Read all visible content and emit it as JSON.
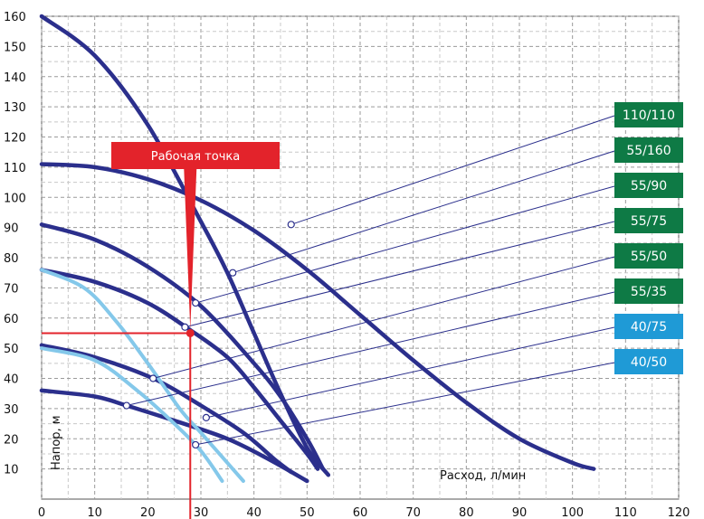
{
  "chart_data": {
    "type": "line",
    "xlabel": "Расход, л/мин",
    "ylabel": "Напор, м",
    "xlim": [
      0,
      120
    ],
    "ylim": [
      0,
      160
    ],
    "x_ticks": [
      "0",
      "10",
      "20",
      "30",
      "40",
      "50",
      "60",
      "70",
      "80",
      "90",
      "100",
      "110",
      "120"
    ],
    "y_ticks": [
      "10",
      "20",
      "30",
      "40",
      "50",
      "60",
      "70",
      "80",
      "90",
      "100",
      "110",
      "120",
      "130",
      "140",
      "150",
      "160"
    ],
    "grid": true,
    "colors": {
      "dark": "#2b2f8c",
      "light": "#84c8ea",
      "green": "#0e7a45",
      "blue": "#1f9ad6",
      "red": "#e3232b"
    },
    "series": [
      {
        "name": "110/110",
        "color": "dark",
        "label_color": "green",
        "points": [
          [
            0,
            111
          ],
          [
            10,
            110
          ],
          [
            20,
            106
          ],
          [
            30,
            99
          ],
          [
            40,
            89
          ],
          [
            50,
            76
          ],
          [
            60,
            61
          ],
          [
            70,
            46
          ],
          [
            80,
            32
          ],
          [
            90,
            20
          ],
          [
            100,
            12
          ],
          [
            104,
            10
          ]
        ],
        "marker": [
          47,
          91
        ]
      },
      {
        "name": "55/160",
        "color": "dark",
        "label_color": "green",
        "points": [
          [
            0,
            160
          ],
          [
            10,
            147
          ],
          [
            20,
            124
          ],
          [
            30,
            92
          ],
          [
            35,
            75
          ],
          [
            40,
            55
          ],
          [
            45,
            35
          ],
          [
            50,
            17
          ],
          [
            54,
            8
          ]
        ],
        "marker": [
          36,
          75
        ]
      },
      {
        "name": "55/90",
        "color": "dark",
        "label_color": "green",
        "points": [
          [
            0,
            91
          ],
          [
            10,
            86
          ],
          [
            20,
            77
          ],
          [
            30,
            64
          ],
          [
            40,
            45
          ],
          [
            45,
            34
          ],
          [
            50,
            20
          ],
          [
            53,
            10
          ]
        ],
        "marker": [
          29,
          65
        ]
      },
      {
        "name": "55/75",
        "color": "dark",
        "label_color": "green",
        "points": [
          [
            0,
            76
          ],
          [
            10,
            72
          ],
          [
            20,
            65
          ],
          [
            28,
            56
          ],
          [
            35,
            47
          ],
          [
            40,
            37
          ],
          [
            45,
            26
          ],
          [
            50,
            15
          ],
          [
            52,
            10
          ]
        ],
        "marker": [
          27,
          57
        ]
      },
      {
        "name": "55/50",
        "color": "dark",
        "label_color": "green",
        "points": [
          [
            0,
            51
          ],
          [
            10,
            47
          ],
          [
            21,
            40
          ],
          [
            30,
            31
          ],
          [
            38,
            22
          ],
          [
            44,
            13
          ],
          [
            47,
            9
          ]
        ],
        "marker": [
          21,
          40
        ]
      },
      {
        "name": "55/35",
        "color": "dark",
        "label_color": "green",
        "points": [
          [
            0,
            36
          ],
          [
            10,
            34
          ],
          [
            16,
            31
          ],
          [
            25,
            26
          ],
          [
            35,
            20
          ],
          [
            43,
            13
          ],
          [
            50,
            6
          ]
        ],
        "marker": [
          16,
          31
        ]
      },
      {
        "name": "40/75",
        "color": "light",
        "label_color": "blue",
        "points": [
          [
            0,
            76
          ],
          [
            8,
            70
          ],
          [
            14,
            59
          ],
          [
            20,
            45
          ],
          [
            26,
            30
          ],
          [
            30,
            22
          ],
          [
            35,
            12
          ],
          [
            38,
            6
          ]
        ],
        "marker": [
          31,
          27
        ]
      },
      {
        "name": "40/50",
        "color": "light",
        "label_color": "blue",
        "points": [
          [
            0,
            50
          ],
          [
            10,
            46
          ],
          [
            18,
            36
          ],
          [
            25,
            25
          ],
          [
            30,
            16
          ],
          [
            34,
            6
          ]
        ],
        "marker": [
          29,
          18
        ]
      }
    ],
    "operating_point": {
      "label": "Рабочая точка",
      "x": 28,
      "y": 55
    }
  }
}
